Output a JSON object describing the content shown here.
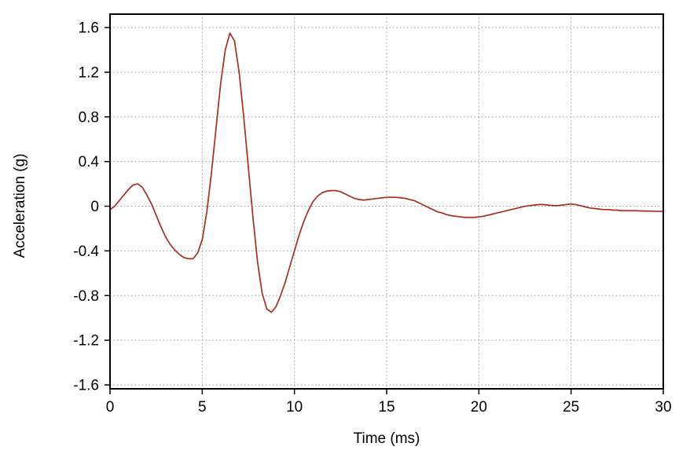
{
  "chart_data": {
    "type": "line",
    "title": "",
    "xlabel": "Time (ms)",
    "ylabel": "Acceleration (g)",
    "xlim": [
      0,
      30
    ],
    "ylim": [
      -1.6,
      1.6
    ],
    "grid": true,
    "legend": false,
    "colors": {
      "line": "#a82e20",
      "grid": "#9a9a9a",
      "frame": "#000000",
      "text": "#000000"
    },
    "xticks": {
      "values": [
        0,
        5,
        10,
        15,
        20,
        25,
        30
      ],
      "labels": [
        "0",
        "5",
        "10",
        "15",
        "20",
        "25",
        "30"
      ]
    },
    "yticks": {
      "values": [
        -1.6,
        -1.2,
        -0.8,
        -0.4,
        0,
        0.4,
        0.8,
        1.2,
        1.6
      ],
      "labels": [
        "-1.6",
        "-1.2",
        "-0.8",
        "-0.4",
        "0",
        "0.4",
        "0.8",
        "1.2",
        "1.6"
      ]
    },
    "series": [
      {
        "name": "acceleration",
        "x": [
          0,
          0.25,
          0.5,
          0.75,
          1,
          1.25,
          1.5,
          1.75,
          2,
          2.25,
          2.5,
          2.75,
          3,
          3.25,
          3.5,
          3.75,
          4,
          4.25,
          4.5,
          4.75,
          5,
          5.25,
          5.5,
          5.75,
          6,
          6.25,
          6.5,
          6.75,
          7,
          7.25,
          7.5,
          7.75,
          8,
          8.25,
          8.5,
          8.75,
          9,
          9.25,
          9.5,
          9.75,
          10,
          10.25,
          10.5,
          10.75,
          11,
          11.25,
          11.5,
          11.75,
          12,
          12.25,
          12.5,
          12.75,
          13,
          13.25,
          13.5,
          13.75,
          14,
          14.25,
          14.5,
          14.75,
          15,
          15.25,
          15.5,
          15.75,
          16,
          16.25,
          16.5,
          16.75,
          17,
          17.25,
          17.5,
          17.75,
          18,
          18.25,
          18.5,
          18.75,
          19,
          19.25,
          19.5,
          19.75,
          20,
          20.25,
          20.5,
          20.75,
          21,
          21.25,
          21.5,
          21.75,
          22,
          22.25,
          22.5,
          22.75,
          23,
          23.25,
          23.5,
          23.75,
          24,
          24.25,
          24.5,
          24.75,
          25,
          25.25,
          25.5,
          25.75,
          26,
          26.25,
          26.5,
          26.75,
          27,
          27.25,
          27.5,
          27.75,
          28,
          28.25,
          28.5,
          28.75,
          29,
          29.25,
          29.5,
          29.75,
          30
        ],
        "y": [
          -0.03,
          0.0,
          0.05,
          0.1,
          0.15,
          0.19,
          0.2,
          0.17,
          0.1,
          0.02,
          -0.08,
          -0.18,
          -0.27,
          -0.34,
          -0.39,
          -0.43,
          -0.46,
          -0.47,
          -0.47,
          -0.42,
          -0.3,
          -0.05,
          0.3,
          0.7,
          1.1,
          1.4,
          1.55,
          1.48,
          1.2,
          0.8,
          0.35,
          -0.1,
          -0.5,
          -0.78,
          -0.92,
          -0.95,
          -0.9,
          -0.8,
          -0.68,
          -0.54,
          -0.4,
          -0.26,
          -0.14,
          -0.04,
          0.04,
          0.09,
          0.12,
          0.135,
          0.14,
          0.14,
          0.13,
          0.11,
          0.09,
          0.07,
          0.06,
          0.055,
          0.06,
          0.065,
          0.07,
          0.075,
          0.08,
          0.08,
          0.08,
          0.075,
          0.07,
          0.06,
          0.05,
          0.03,
          0.01,
          -0.01,
          -0.03,
          -0.05,
          -0.06,
          -0.075,
          -0.085,
          -0.09,
          -0.095,
          -0.1,
          -0.1,
          -0.1,
          -0.095,
          -0.09,
          -0.08,
          -0.07,
          -0.06,
          -0.05,
          -0.04,
          -0.03,
          -0.02,
          -0.01,
          0.0,
          0.005,
          0.01,
          0.015,
          0.015,
          0.01,
          0.005,
          0.005,
          0.01,
          0.015,
          0.02,
          0.015,
          0.005,
          -0.005,
          -0.015,
          -0.02,
          -0.025,
          -0.03,
          -0.03,
          -0.035,
          -0.035,
          -0.04,
          -0.04,
          -0.04,
          -0.04,
          -0.042,
          -0.043,
          -0.044,
          -0.045,
          -0.046,
          -0.047
        ]
      }
    ]
  }
}
